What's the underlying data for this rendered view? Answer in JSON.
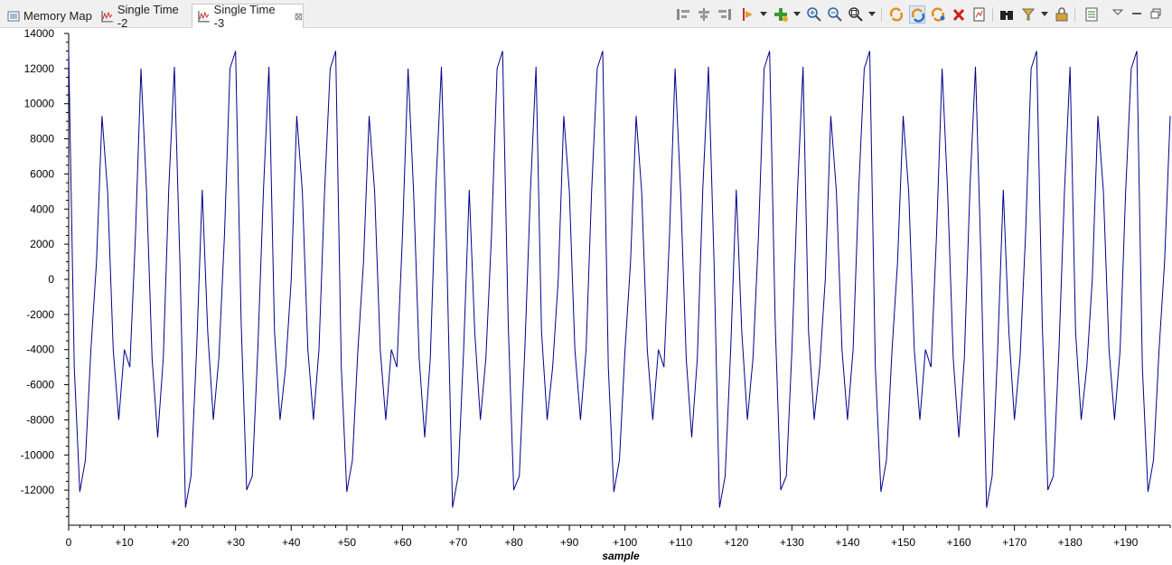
{
  "tabs": [
    {
      "label": "Memory Map",
      "active": false
    },
    {
      "label": "Single Time -2",
      "active": false
    },
    {
      "label": "Single Time -3",
      "active": true
    }
  ],
  "tab_close_glyph": "⊠",
  "toolbar_icons": [
    "align-left-icon",
    "align-center-icon",
    "align-right-icon",
    "marker-icon",
    "add-measurement-icon",
    "zoom-in-icon",
    "zoom-out-icon",
    "zoom-fit-icon",
    "sync-icon",
    "sync-pressed-icon",
    "refresh-icon",
    "delete-icon",
    "export-icon",
    "binoculars-icon",
    "filter-icon",
    "lock-icon",
    "settings-icon",
    "view-menu-icon",
    "minimize-icon",
    "restore-icon"
  ],
  "colors": {
    "trace": "#00008b",
    "axis": "#000000",
    "background": "#ffffff"
  },
  "chart_data": {
    "type": "line",
    "xlabel": "sample",
    "ylabel": "",
    "title": "",
    "xlim": [
      0,
      198
    ],
    "ylim": [
      -14000,
      14000
    ],
    "yticks": [
      14000,
      12000,
      10000,
      8000,
      6000,
      4000,
      2000,
      0,
      -2000,
      -4000,
      -6000,
      -8000,
      -10000,
      -12000
    ],
    "ytick_labels": [
      "14000",
      "12000",
      "10000",
      "8000",
      "6000",
      "4000",
      "2000",
      "0",
      "-2000",
      "-4000",
      "-6000",
      "-8000",
      "-10000",
      "-12000"
    ],
    "xticks": [
      0,
      10,
      20,
      30,
      40,
      50,
      60,
      70,
      80,
      90,
      100,
      110,
      120,
      130,
      140,
      150,
      160,
      170,
      180,
      190
    ],
    "xtick_labels": [
      "0",
      "+10",
      "+20",
      "+30",
      "+40",
      "+50",
      "+60",
      "+70",
      "+80",
      "+90",
      "+100",
      "+110",
      "+120",
      "+130",
      "+140",
      "+150",
      "+160",
      "+170",
      "+180",
      "+190"
    ],
    "series": [
      {
        "values": [
          13000,
          -5000,
          -12100,
          -10300,
          -4000,
          1000,
          9300,
          5000,
          -4000,
          -8000,
          -4000,
          -5000,
          2500,
          12000,
          5000,
          -4500,
          -9000,
          -4500,
          5200,
          12100,
          1000,
          -13000,
          -11200,
          -4000,
          5100,
          -3000,
          -8000,
          -4500,
          2500,
          12000,
          13000,
          -2500,
          -12000,
          -11200,
          -4000,
          5000,
          12100,
          -3000,
          -8000,
          -5000,
          0,
          9300,
          5000,
          -4000,
          -8000,
          -4000,
          5000,
          12000
        ],
        "note": ""
      }
    ]
  }
}
